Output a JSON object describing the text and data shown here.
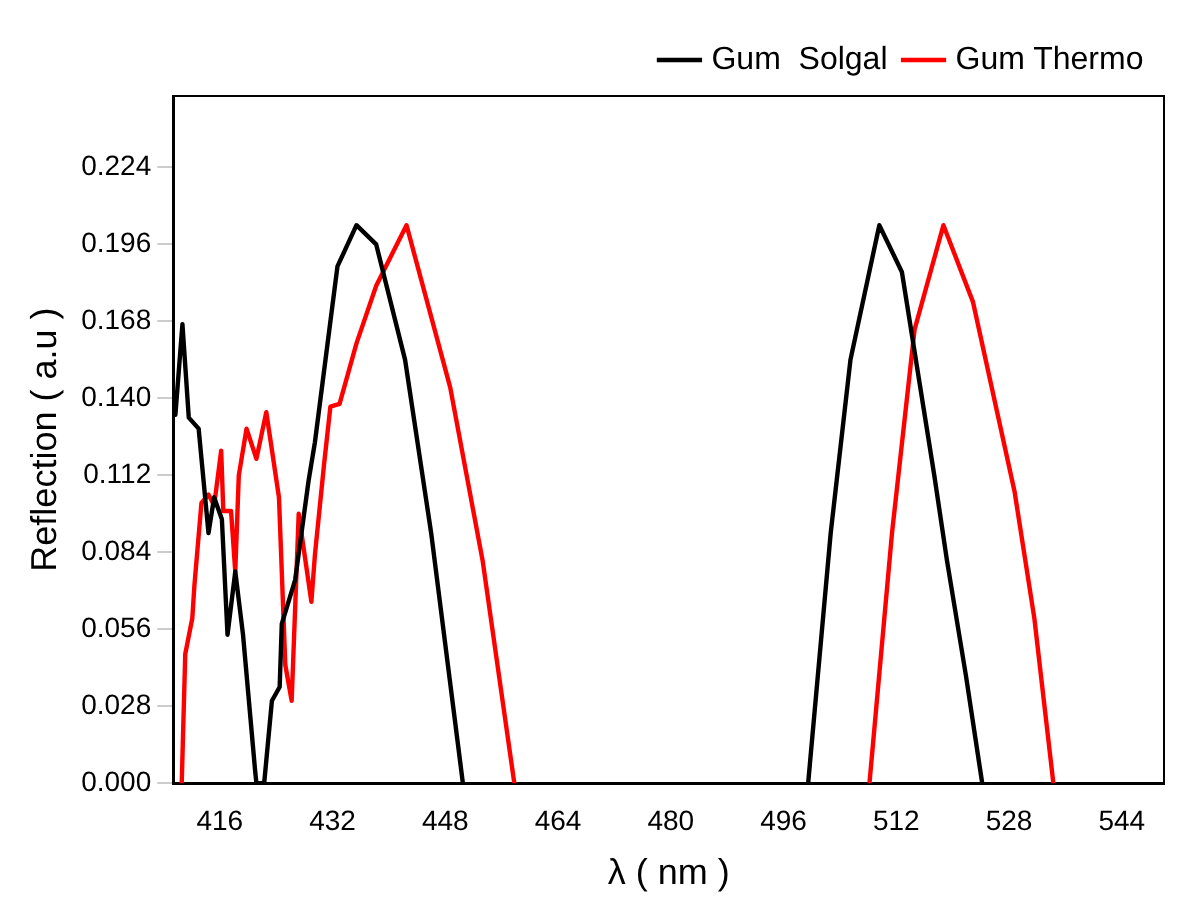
{
  "chart_data": {
    "type": "line",
    "xlabel": "λ ( nm )",
    "ylabel": "Reflection ( a.u )",
    "xlim": [
      409.4,
      550
    ],
    "ylim": [
      0,
      0.25
    ],
    "xticks": [
      416,
      432,
      448,
      464,
      480,
      496,
      512,
      528,
      544
    ],
    "yticks": [
      {
        "value": 0,
        "label": "0.000"
      },
      {
        "value": 0.028,
        "label": "0.028"
      },
      {
        "value": 0.056,
        "label": "0.056"
      },
      {
        "value": 0.084,
        "label": "0.084"
      },
      {
        "value": 0.112,
        "label": "0.112"
      },
      {
        "value": 0.14,
        "label": "0.140"
      },
      {
        "value": 0.168,
        "label": "0.168"
      },
      {
        "value": 0.196,
        "label": "0.196"
      },
      {
        "value": 0.224,
        "label": "0.224"
      }
    ],
    "grid": false,
    "legend": "top right",
    "line_style": "solid",
    "series": [
      {
        "name": "Gum  Solgal",
        "color": "#000000",
        "x": [
          409.7,
          410.7,
          411.6,
          413,
          414.4,
          415.2,
          416.3,
          417.1,
          418.2,
          419.3,
          421,
          421.2,
          422.3,
          423.4,
          424.5,
          424.8,
          426.7,
          428.6,
          429.5,
          431.4,
          432.7,
          435.4,
          438.2,
          442.3,
          446,
          450.5,
          null,
          499.5,
          502.7,
          505.5,
          509.6,
          512.8,
          517.4,
          519.2,
          521.9,
          524.2
        ],
        "values": [
          0.134,
          0.167,
          0.133,
          0.129,
          0.091,
          0.104,
          0.096,
          0.054,
          0.077,
          0.054,
          0.005,
          0,
          0,
          0.03,
          0.035,
          0.058,
          0.074,
          0.11,
          0.124,
          0.162,
          0.188,
          0.203,
          0.196,
          0.154,
          0.091,
          0,
          null,
          0,
          0.091,
          0.154,
          0.203,
          0.186,
          0.112,
          0.081,
          0.039,
          0
        ]
      },
      {
        "name": "Gum Thermo",
        "color": "#ff0000",
        "x": [
          410.6,
          411.1,
          412.1,
          412.4,
          413.4,
          414.4,
          415.2,
          416.2,
          416.5,
          417.6,
          418.2,
          418.7,
          419.8,
          421.2,
          422.6,
          424.4,
          425.3,
          426.2,
          427.2,
          429,
          429.5,
          430.8,
          431.7,
          433,
          435.4,
          438.2,
          442.5,
          448.7,
          453.3,
          457.8,
          null,
          508.2,
          511.4,
          514.6,
          518.7,
          522.9,
          528.8,
          531.6,
          534.3
        ],
        "values": [
          0,
          0.047,
          0.06,
          0.072,
          0.102,
          0.105,
          0.101,
          0.121,
          0.099,
          0.099,
          0.077,
          0.112,
          0.129,
          0.118,
          0.135,
          0.104,
          0.043,
          0.03,
          0.098,
          0.066,
          0.083,
          0.116,
          0.137,
          0.138,
          0.16,
          0.181,
          0.203,
          0.144,
          0.081,
          0,
          null,
          0,
          0.091,
          0.165,
          0.203,
          0.175,
          0.106,
          0.06,
          0
        ]
      }
    ]
  }
}
